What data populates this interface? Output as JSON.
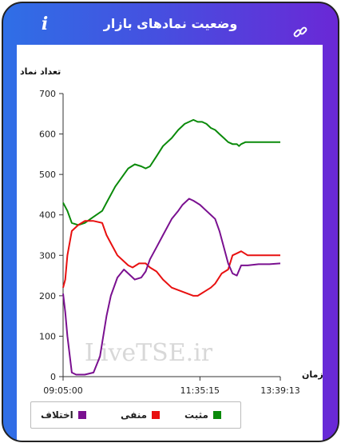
{
  "header": {
    "title": "وضعیت نمادهای بازار",
    "info_icon": "info-icon",
    "link_icon": "link-icon"
  },
  "chart_data": {
    "type": "line",
    "ylabel": "تعداد نماد",
    "xlabel": "زمان",
    "ylim": [
      0,
      700
    ],
    "yticks": [
      0,
      100,
      200,
      300,
      400,
      500,
      600,
      700
    ],
    "x_tick_labels": [
      "09:05:00",
      "11:35:15",
      "13:39:13"
    ],
    "x_tick_positions": [
      0,
      0.63,
      1
    ],
    "watermark": "LiveTSE.ir",
    "grid": false,
    "legend_position": "bottom",
    "series": [
      {
        "name": "مثبت",
        "color": "#0a8a0a",
        "x": [
          0,
          0.02,
          0.04,
          0.07,
          0.1,
          0.14,
          0.18,
          0.2,
          0.24,
          0.28,
          0.3,
          0.33,
          0.36,
          0.38,
          0.4,
          0.43,
          0.46,
          0.5,
          0.53,
          0.56,
          0.6,
          0.62,
          0.64,
          0.66,
          0.68,
          0.7,
          0.72,
          0.74,
          0.76,
          0.78,
          0.8,
          0.81,
          0.82,
          0.84,
          0.87,
          0.9,
          0.95,
          1.0
        ],
        "values": [
          430,
          410,
          380,
          375,
          380,
          395,
          410,
          430,
          470,
          500,
          515,
          525,
          520,
          515,
          520,
          545,
          570,
          590,
          610,
          625,
          635,
          630,
          630,
          625,
          615,
          610,
          600,
          590,
          580,
          575,
          575,
          570,
          575,
          580,
          580,
          580,
          580,
          580
        ]
      },
      {
        "name": "منفی",
        "color": "#e81010",
        "x": [
          0,
          0.01,
          0.02,
          0.04,
          0.07,
          0.1,
          0.14,
          0.18,
          0.2,
          0.22,
          0.25,
          0.28,
          0.3,
          0.32,
          0.35,
          0.38,
          0.4,
          0.43,
          0.46,
          0.5,
          0.55,
          0.6,
          0.62,
          0.65,
          0.68,
          0.7,
          0.73,
          0.76,
          0.78,
          0.8,
          0.82,
          0.85,
          0.9,
          0.95,
          1.0
        ],
        "values": [
          220,
          240,
          300,
          360,
          375,
          385,
          385,
          380,
          350,
          330,
          300,
          285,
          275,
          270,
          280,
          280,
          270,
          260,
          240,
          220,
          210,
          200,
          200,
          210,
          220,
          230,
          255,
          265,
          300,
          305,
          310,
          300,
          300,
          300,
          300
        ]
      },
      {
        "name": "اختلاف",
        "color": "#7a1090",
        "x": [
          0,
          0.01,
          0.02,
          0.04,
          0.06,
          0.1,
          0.14,
          0.17,
          0.2,
          0.22,
          0.25,
          0.28,
          0.3,
          0.33,
          0.36,
          0.38,
          0.4,
          0.43,
          0.46,
          0.5,
          0.53,
          0.55,
          0.58,
          0.6,
          0.63,
          0.66,
          0.68,
          0.7,
          0.72,
          0.74,
          0.76,
          0.78,
          0.8,
          0.82,
          0.85,
          0.9,
          0.95,
          1.0
        ],
        "values": [
          205,
          160,
          100,
          10,
          5,
          5,
          10,
          50,
          150,
          200,
          245,
          265,
          255,
          240,
          245,
          260,
          290,
          320,
          350,
          390,
          410,
          425,
          440,
          435,
          425,
          410,
          400,
          390,
          360,
          320,
          280,
          255,
          250,
          275,
          275,
          278,
          278,
          280
        ]
      }
    ]
  }
}
